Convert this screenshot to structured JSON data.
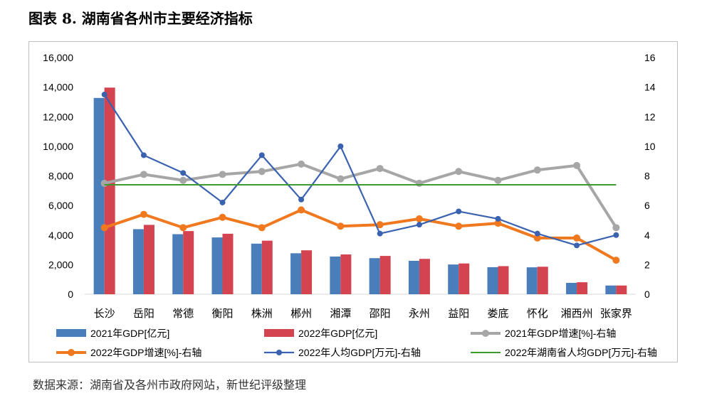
{
  "title": "图表 8. 湖南省各州市主要经济指标",
  "source": "数据来源：湖南省及各州市政府网站，新世纪评级整理",
  "colors": {
    "gdp2021": "#4a7ebb",
    "gdp2022": "#d44350",
    "growth2021": "#a6a6a6",
    "growth2022": "#f0781e",
    "percap2022": "#3a62b0",
    "province": "#3c9a2e"
  },
  "chart_data": {
    "type": "bar+line",
    "categories": [
      "长沙",
      "岳阳",
      "常德",
      "衡阳",
      "株洲",
      "郴州",
      "湘潭",
      "邵阳",
      "永州",
      "益阳",
      "娄底",
      "怀化",
      "湘西州",
      "张家界"
    ],
    "left_axis": {
      "min": 0,
      "max": 16000,
      "step": 2000,
      "ticks": [
        "0",
        "2,000",
        "4,000",
        "6,000",
        "8,000",
        "10,000",
        "12,000",
        "14,000",
        "16,000"
      ]
    },
    "right_axis": {
      "min": 0,
      "max": 16,
      "step": 2,
      "ticks": [
        "0",
        "2",
        "4",
        "6",
        "8",
        "10",
        "12",
        "14",
        "16"
      ]
    },
    "bar_series": [
      {
        "name": "2021年GDP[亿元]",
        "color_key": "gdp2021",
        "values": [
          13270,
          4400,
          4060,
          3840,
          3420,
          2770,
          2550,
          2440,
          2260,
          2010,
          1830,
          1820,
          770,
          590
        ]
      },
      {
        "name": "2022年GDP[亿元]",
        "color_key": "gdp2022",
        "values": [
          13970,
          4690,
          4270,
          4090,
          3620,
          2970,
          2690,
          2590,
          2390,
          2080,
          1900,
          1860,
          810,
          590
        ]
      }
    ],
    "line_series": [
      {
        "name": "2021年GDP增速[%]-右轴",
        "color_key": "growth2021",
        "marker": "circle-large",
        "values": [
          7.5,
          8.1,
          7.7,
          8.1,
          8.3,
          8.8,
          7.8,
          8.5,
          7.5,
          8.3,
          7.7,
          8.4,
          8.7,
          4.5
        ]
      },
      {
        "name": "2022年GDP增速[%]-右轴",
        "color_key": "growth2022",
        "marker": "circle-large",
        "values": [
          4.5,
          5.4,
          4.5,
          5.2,
          4.5,
          5.7,
          4.6,
          4.7,
          5.1,
          4.6,
          4.8,
          3.8,
          3.8,
          2.3
        ]
      },
      {
        "name": "2022年人均GDP[万元]-右轴",
        "color_key": "percap2022",
        "marker": "circle-small",
        "values": [
          13.5,
          9.4,
          8.2,
          6.2,
          9.4,
          6.4,
          10.0,
          4.1,
          4.7,
          5.6,
          5.1,
          4.1,
          3.3,
          4.0
        ]
      },
      {
        "name": "2022年湖南省人均GDP[万元]-右轴",
        "color_key": "province",
        "marker": "none",
        "values": [
          7.4,
          7.4,
          7.4,
          7.4,
          7.4,
          7.4,
          7.4,
          7.4,
          7.4,
          7.4,
          7.4,
          7.4,
          7.4,
          7.4
        ]
      }
    ],
    "legend_position": "bottom",
    "grid": false
  }
}
